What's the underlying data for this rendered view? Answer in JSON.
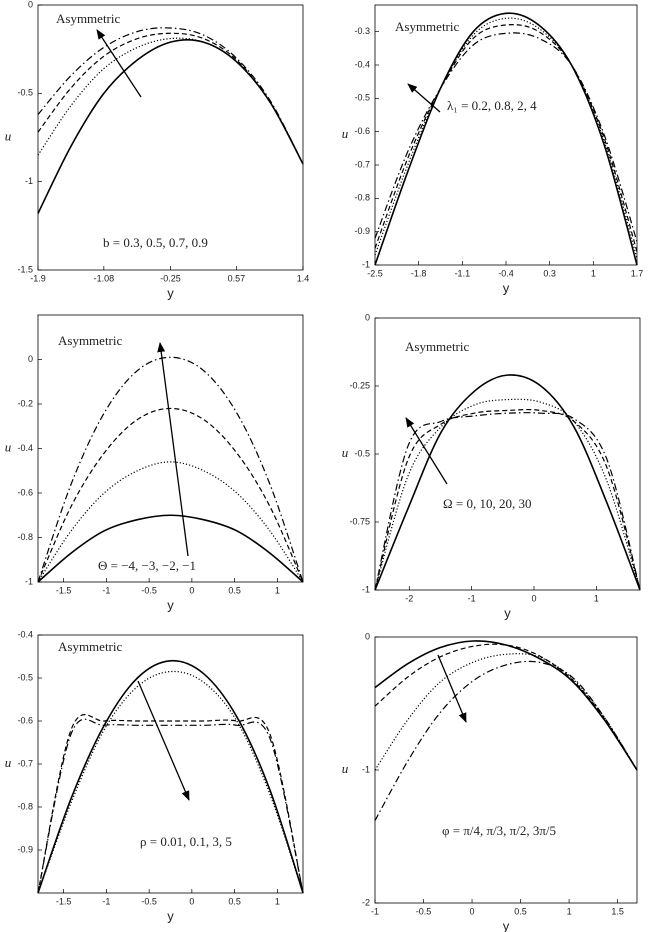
{
  "chart_data": [
    {
      "type": "line",
      "xlabel": "y",
      "ylabel": "u",
      "annotations": [
        "Asymmetric",
        "b = 0.3, 0.5, 0.7, 0.9"
      ],
      "x": [
        -1.9,
        -1.49,
        -1.08,
        -0.66,
        -0.25,
        0.16,
        0.57,
        0.99,
        1.4
      ],
      "xlim": [
        -1.9,
        1.4
      ],
      "xticks": [
        -1.9,
        -1.08,
        -0.25,
        0.57,
        1.4
      ],
      "ylim": [
        -1.5,
        0
      ],
      "yticks": [
        0,
        -0.5,
        -1,
        -1.5
      ],
      "series": [
        {
          "color": "#000000",
          "dash": "solid",
          "values": [
            -1.18,
            -0.8,
            -0.5,
            -0.31,
            -0.21,
            -0.21,
            -0.32,
            -0.55,
            -0.9
          ]
        },
        {
          "color": "#000000",
          "dash": "dotted",
          "values": [
            -0.85,
            -0.57,
            -0.36,
            -0.24,
            -0.19,
            -0.21,
            -0.32,
            -0.55,
            -0.9
          ]
        },
        {
          "color": "#000000",
          "dash": "dashed",
          "values": [
            -0.72,
            -0.47,
            -0.29,
            -0.19,
            -0.16,
            -0.19,
            -0.31,
            -0.55,
            -0.9
          ]
        },
        {
          "color": "#000000",
          "dash": "dashdot",
          "values": [
            -0.62,
            -0.4,
            -0.24,
            -0.15,
            -0.13,
            -0.17,
            -0.3,
            -0.54,
            -0.9
          ]
        }
      ]
    },
    {
      "type": "line",
      "xlabel": "y",
      "ylabel": "u",
      "annotations": [
        "Asymmetric",
        "λ₁ = 0.2, 0.8, 2, 4"
      ],
      "x": [
        -2.5,
        -1.975,
        -1.45,
        -0.925,
        -0.4,
        0.125,
        0.65,
        1.175,
        1.7
      ],
      "xlim": [
        -2.5,
        1.7
      ],
      "xticks": [
        -2.5,
        -1.8,
        -1.1,
        -0.4,
        0.3,
        1,
        1.7
      ],
      "ylim": [
        -1,
        -0.22
      ],
      "yticks": [
        -0.3,
        -0.4,
        -0.5,
        -0.6,
        -0.7,
        -0.8,
        -0.9,
        -1
      ],
      "series": [
        {
          "color": "#000000",
          "dash": "solid",
          "values": [
            -1,
            -0.72,
            -0.47,
            -0.3,
            -0.245,
            -0.28,
            -0.4,
            -0.64,
            -1
          ]
        },
        {
          "color": "#000000",
          "dash": "dotted",
          "values": [
            -0.97,
            -0.7,
            -0.47,
            -0.31,
            -0.26,
            -0.29,
            -0.4,
            -0.63,
            -0.98
          ]
        },
        {
          "color": "#000000",
          "dash": "dashed",
          "values": [
            -0.95,
            -0.68,
            -0.47,
            -0.32,
            -0.28,
            -0.3,
            -0.4,
            -0.62,
            -0.96
          ]
        },
        {
          "color": "#000000",
          "dash": "dashdot",
          "values": [
            -0.92,
            -0.66,
            -0.47,
            -0.34,
            -0.305,
            -0.32,
            -0.4,
            -0.61,
            -0.93
          ]
        }
      ]
    },
    {
      "type": "line",
      "xlabel": "y",
      "ylabel": "u",
      "annotations": [
        "Asymmetric",
        "Θ = −4, −3, −2, −1"
      ],
      "x": [
        -1.8,
        -1.4125,
        -1.025,
        -0.6375,
        -0.25,
        0.1375,
        0.525,
        0.9125,
        1.3
      ],
      "xlim": [
        -1.8,
        1.3
      ],
      "xticks": [
        -1.5,
        -1,
        -0.5,
        0,
        0.5,
        1
      ],
      "ylim": [
        -1,
        0.2
      ],
      "yticks": [
        0,
        -0.2,
        -0.4,
        -0.6,
        -0.8,
        -1
      ],
      "series": [
        {
          "color": "#000000",
          "dash": "solid",
          "values": [
            -1,
            -0.87,
            -0.77,
            -0.72,
            -0.7,
            -0.72,
            -0.77,
            -0.87,
            -1
          ]
        },
        {
          "color": "#000000",
          "dash": "dotted",
          "values": [
            -1,
            -0.77,
            -0.6,
            -0.5,
            -0.46,
            -0.5,
            -0.6,
            -0.77,
            -1
          ]
        },
        {
          "color": "#000000",
          "dash": "dashed",
          "values": [
            -1,
            -0.66,
            -0.42,
            -0.27,
            -0.22,
            -0.27,
            -0.42,
            -0.66,
            -1
          ]
        },
        {
          "color": "#000000",
          "dash": "dashdot",
          "values": [
            -1,
            -0.56,
            -0.24,
            -0.05,
            0.01,
            -0.05,
            -0.24,
            -0.56,
            -1
          ]
        }
      ]
    },
    {
      "type": "line",
      "xlabel": "y",
      "ylabel": "u",
      "annotations": [
        "Asymmetric",
        "Ω = 0, 10, 20, 30"
      ],
      "x": [
        -2.55,
        -2.02,
        -1.49,
        -0.96,
        -0.43,
        0.11,
        0.64,
        1.17,
        1.7
      ],
      "xlim": [
        -2.55,
        1.7
      ],
      "xticks": [
        -2,
        -1,
        0,
        1
      ],
      "ylim": [
        -1,
        0
      ],
      "yticks": [
        0,
        -0.25,
        -0.5,
        -0.75,
        -1
      ],
      "series": [
        {
          "color": "#000000",
          "dash": "solid",
          "values": [
            -1,
            -0.7,
            -0.42,
            -0.27,
            -0.21,
            -0.25,
            -0.4,
            -0.68,
            -1
          ]
        },
        {
          "color": "#000000",
          "dash": "dotted",
          "values": [
            -1,
            -0.58,
            -0.4,
            -0.32,
            -0.3,
            -0.31,
            -0.38,
            -0.6,
            -1
          ]
        },
        {
          "color": "#000000",
          "dash": "dashed",
          "values": [
            -1,
            -0.52,
            -0.39,
            -0.35,
            -0.34,
            -0.34,
            -0.38,
            -0.55,
            -1
          ]
        },
        {
          "color": "#000000",
          "dash": "dashdot",
          "values": [
            -1,
            -0.47,
            -0.38,
            -0.36,
            -0.35,
            -0.35,
            -0.37,
            -0.52,
            -1
          ]
        }
      ]
    },
    {
      "type": "line",
      "xlabel": "y",
      "ylabel": "u",
      "annotations": [
        "Asymmetric",
        "ρ = 0.01, 0.1, 3, 5"
      ],
      "x": [
        -1.8,
        -1.4125,
        -1.025,
        -0.6375,
        -0.25,
        0.1375,
        0.525,
        0.9125,
        1.3
      ],
      "xlim": [
        -1.8,
        1.3
      ],
      "xticks": [
        -1.5,
        -1,
        -0.5,
        0,
        0.5,
        1
      ],
      "ylim": [
        -1,
        -0.4
      ],
      "yticks": [
        -0.4,
        -0.5,
        -0.6,
        -0.7,
        -0.8,
        -0.9
      ],
      "series": [
        {
          "color": "#000000",
          "dash": "solid",
          "values": [
            -1,
            -0.78,
            -0.61,
            -0.5,
            -0.46,
            -0.49,
            -0.59,
            -0.76,
            -1
          ]
        },
        {
          "color": "#000000",
          "dash": "dotted",
          "values": [
            -1,
            -0.79,
            -0.62,
            -0.52,
            -0.485,
            -0.51,
            -0.6,
            -0.77,
            -1
          ]
        },
        {
          "color": "#000000",
          "dash": "dashed",
          "values": [
            -1,
            -0.62,
            -0.6,
            -0.6,
            -0.6,
            -0.6,
            -0.6,
            -0.63,
            -1
          ]
        },
        {
          "color": "#000000",
          "dash": "dashdot",
          "values": [
            -1,
            -0.63,
            -0.61,
            -0.61,
            -0.61,
            -0.61,
            -0.61,
            -0.64,
            -1
          ]
        }
      ]
    },
    {
      "type": "line",
      "xlabel": "y",
      "ylabel": "u",
      "annotations": [
        "φ = π/4, π/3, π/2, 3π/5"
      ],
      "x": [
        -1,
        -0.66,
        -0.33,
        0.01,
        0.35,
        0.69,
        1.03,
        1.36,
        1.7
      ],
      "xlim": [
        -1,
        1.7
      ],
      "xticks": [
        -1,
        -0.5,
        0,
        0.5,
        1,
        1.5
      ],
      "ylim": [
        -2,
        0
      ],
      "yticks": [
        0,
        -1,
        -2
      ],
      "series": [
        {
          "color": "#000000",
          "dash": "solid",
          "values": [
            -0.38,
            -0.2,
            -0.08,
            -0.03,
            -0.06,
            -0.16,
            -0.33,
            -0.62,
            -1
          ]
        },
        {
          "color": "#000000",
          "dash": "dashed",
          "values": [
            -0.52,
            -0.3,
            -0.15,
            -0.07,
            -0.06,
            -0.14,
            -0.32,
            -0.61,
            -1
          ]
        },
        {
          "color": "#000000",
          "dash": "dotted",
          "values": [
            -1,
            -0.62,
            -0.34,
            -0.19,
            -0.13,
            -0.15,
            -0.31,
            -0.6,
            -1
          ]
        },
        {
          "color": "#000000",
          "dash": "dashdot",
          "values": [
            -1.38,
            -0.93,
            -0.57,
            -0.33,
            -0.21,
            -0.19,
            -0.3,
            -0.6,
            -1
          ]
        }
      ]
    }
  ]
}
